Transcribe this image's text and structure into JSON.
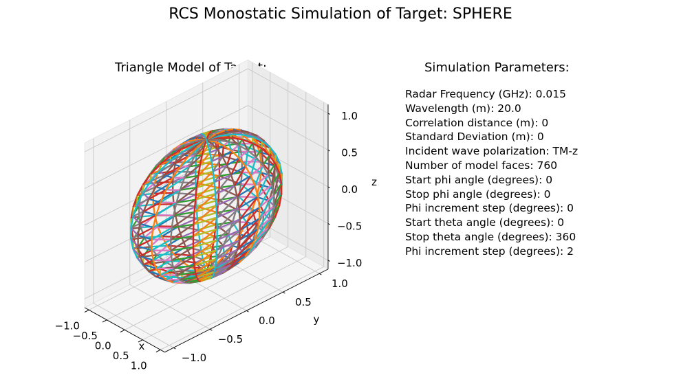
{
  "suptitle": "RCS Monostatic Simulation of Target: SPHERE",
  "chart_data": {
    "type": "wireframe3d",
    "title": "Triangle Model of Target:",
    "target": "SPHERE",
    "model": "sphere",
    "faces": 760,
    "xlabel": "x",
    "ylabel": "y",
    "zlabel": "z",
    "xlim": [
      -1.0,
      1.0
    ],
    "ylim": [
      -1.0,
      1.0
    ],
    "zlim": [
      -1.0,
      1.0
    ],
    "xticks": [
      "−1.0",
      "−0.5",
      "0.0",
      "0.5",
      "1.0"
    ],
    "yticks": [
      "−1.0",
      "−0.5",
      "0.0",
      "0.5",
      "1.0"
    ],
    "zticks": [
      "−1.0",
      "−0.5",
      "0.0",
      "0.5",
      "1.0"
    ],
    "grid": true,
    "colors": [
      "#1f77b4",
      "#ff7f0e",
      "#2ca02c",
      "#d62728",
      "#9467bd",
      "#8c564b",
      "#e377c2",
      "#7f7f7f",
      "#bcbd22",
      "#17becf"
    ]
  },
  "params": {
    "title": "Simulation Parameters:",
    "lines": [
      "Radar Frequency (GHz): 0.015",
      "Wavelength (m): 20.0",
      "Correlation distance (m): 0",
      "Standard Deviation (m): 0",
      "Incident wave polarization: TM-z",
      "Number of model faces: 760",
      "Start phi angle (degrees): 0",
      "Stop phi angle (degrees): 0",
      "Phi increment step (degrees): 0",
      "Start theta angle (degrees): 0",
      "Stop theta angle (degrees): 360",
      "Phi increment step (degrees): 2"
    ]
  }
}
